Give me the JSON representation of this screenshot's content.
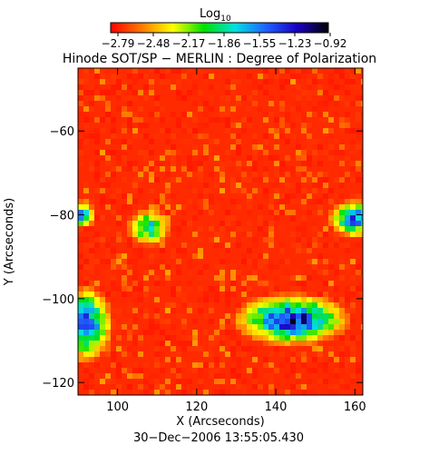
{
  "colorbar": {
    "label_base": "Log",
    "label_sub": "10",
    "ticks": [
      "−2.79",
      "−2.48",
      "−2.17",
      "−1.86",
      "−1.55",
      "−1.23",
      "−0.92"
    ],
    "colors": [
      "#ff0000",
      "#ff7a00",
      "#ffff00",
      "#00e000",
      "#00e0e0",
      "#2060ff",
      "#1800c0",
      "#000000"
    ]
  },
  "footer": {
    "timestamp": "30−Dec−2006 13:55:05.430"
  },
  "chart_data": {
    "type": "heatmap",
    "title": "Hinode SOT/SP − MERLIN : Degree of Polarization",
    "xlabel": "X (Arcseconds)",
    "ylabel": "Y (Arcseconds)",
    "xlim": [
      90,
      162
    ],
    "ylim": [
      -123,
      -45
    ],
    "xticks": [
      100,
      120,
      140,
      160
    ],
    "yticks": [
      -60,
      -80,
      -100,
      -120
    ],
    "value_range": [
      -2.79,
      -0.92
    ],
    "background_level": -2.79,
    "high_polarization_regions": [
      {
        "name": "lower-right-cluster",
        "x_center": 144,
        "y_center": -105,
        "x_radius": 13,
        "y_radius": 5.5,
        "peak": -0.92
      },
      {
        "name": "lower-left-edge",
        "x_center": 92,
        "y_center": -106,
        "x_radius": 6,
        "y_radius": 8,
        "peak": -1.1
      },
      {
        "name": "right-edge",
        "x_center": 160,
        "y_center": -81,
        "x_radius": 6,
        "y_radius": 4,
        "peak": -1.2
      },
      {
        "name": "left-edge-mid",
        "x_center": 91,
        "y_center": -80,
        "x_radius": 3,
        "y_radius": 3,
        "peak": -1.4
      },
      {
        "name": "center-strand",
        "x_center": 108,
        "y_center": -83,
        "x_radius": 5,
        "y_radius": 4,
        "peak": -1.5
      }
    ]
  }
}
